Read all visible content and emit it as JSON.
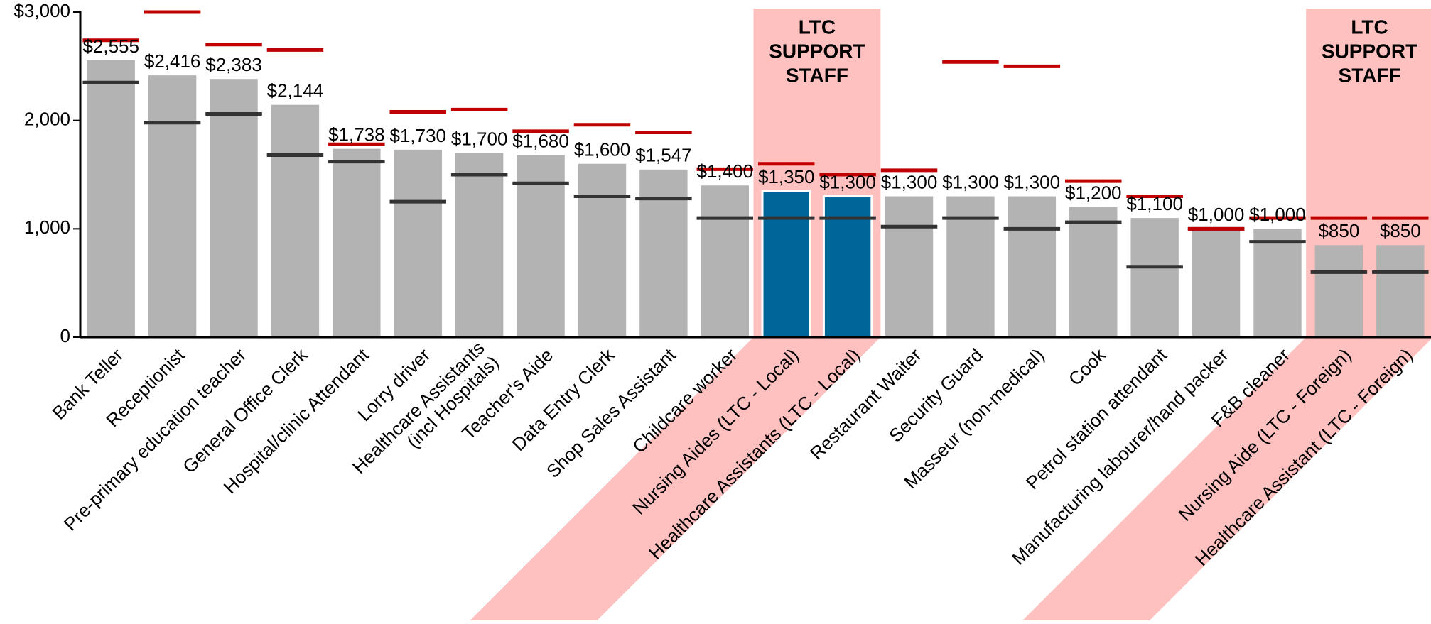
{
  "chart_data": {
    "type": "bar",
    "categories": [
      "Bank Teller",
      "Receptionist",
      "Pre-primary education teacher",
      "General Office Clerk",
      "Hospital/clinic Attendant",
      "Lorry driver",
      "Healthcare Assistants\n(incl Hospitals)",
      "Teacher's Aide",
      "Data Entry Clerk",
      "Shop Sales Assistant",
      "Childcare worker",
      "Nursing Aides (LTC - Local)",
      "Healthcare Assistants (LTC - Local)",
      "Restaurant Waiter",
      "Security Guard",
      "Masseur (non-medical)",
      "Cook",
      "Petrol station attendant",
      "Manufacturing labourer/hand packer",
      "F&B cleaner",
      "Nursing Aide (LTC - Foreign)",
      "Healthcare Assistant (LTC - Foreign)"
    ],
    "values": [
      2555,
      2416,
      2383,
      2144,
      1738,
      1730,
      1700,
      1680,
      1600,
      1547,
      1400,
      1350,
      1300,
      1300,
      1300,
      1300,
      1200,
      1100,
      1000,
      1000,
      850,
      850
    ],
    "value_labels": [
      "$2,555",
      "$2,416",
      "$2,383",
      "$2,144",
      "$1,738",
      "$1,730",
      "$1,700",
      "$1,680",
      "$1,600",
      "$1,547",
      "$1,400",
      "$1,350",
      "$1,300",
      "$1,300",
      "$1,300",
      "$1,300",
      "$1,200",
      "$1,100",
      "$1,000",
      "$1,000",
      "$850",
      "$850"
    ],
    "colors": [
      "#b3b3b3",
      "#b3b3b3",
      "#b3b3b3",
      "#b3b3b3",
      "#b3b3b3",
      "#b3b3b3",
      "#b3b3b3",
      "#b3b3b3",
      "#b3b3b3",
      "#b3b3b3",
      "#b3b3b3",
      "#006699",
      "#006699",
      "#b3b3b3",
      "#b3b3b3",
      "#b3b3b3",
      "#b3b3b3",
      "#b3b3b3",
      "#b3b3b3",
      "#b3b3b3",
      "#b3b3b3",
      "#b3b3b3"
    ],
    "lower_values": [
      2350,
      1980,
      2060,
      1680,
      1620,
      1250,
      1500,
      1420,
      1300,
      1280,
      1100,
      1100,
      1100,
      1020,
      1100,
      1000,
      1060,
      650,
      1000,
      880,
      600,
      600
    ],
    "lower_color": "#333333",
    "upper_values": [
      2740,
      3000,
      2700,
      2650,
      1780,
      2080,
      2100,
      1900,
      1960,
      1890,
      1550,
      1600,
      1500,
      1540,
      2540,
      2500,
      1440,
      1300,
      1000,
      1100,
      1100,
      1100
    ],
    "upper_color": "#c00000",
    "ylim": [
      0,
      3000
    ],
    "yticks": [
      0,
      {
        "value": 1000,
        "label": "1,000"
      },
      {
        "value": 2000,
        "label": "2,000"
      },
      {
        "value": 3000,
        "label": "$3,000"
      }
    ],
    "annotations": [
      {
        "text": [
          "LTC",
          "SUPPORT",
          "STAFF"
        ],
        "categories": [
          "Nursing Aides (LTC - Local)",
          "Healthcare Assistants (LTC - Local)"
        ],
        "color": "#ffc0c0"
      },
      {
        "text": [
          "LTC",
          "SUPPORT",
          "STAFF"
        ],
        "categories": [
          "Nursing Aide (LTC - Foreign)",
          "Healthcare Assistant (LTC - Foreign)"
        ],
        "color": "#ffc0c0"
      }
    ]
  }
}
